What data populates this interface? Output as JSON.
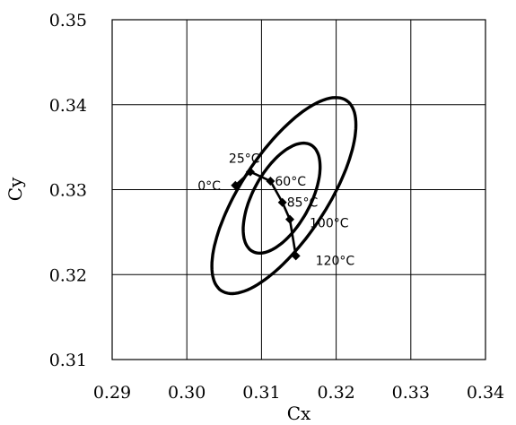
{
  "chart_data": {
    "type": "scatter",
    "xlabel": "Cx",
    "ylabel": "Cy",
    "xlim": [
      0.29,
      0.34
    ],
    "ylim": [
      0.31,
      0.35
    ],
    "x_ticks": [
      "0.29",
      "0.30",
      "0.31",
      "0.32",
      "0.33",
      "0.34"
    ],
    "y_ticks": [
      "0.31",
      "0.32",
      "0.33",
      "0.34",
      "0.35"
    ],
    "grid": true,
    "series": [
      {
        "points": [
          {
            "label": "0°C",
            "x": 0.3065,
            "y": 0.3305
          },
          {
            "label": "25°C",
            "x": 0.3085,
            "y": 0.3321
          },
          {
            "label": "60°C",
            "x": 0.3112,
            "y": 0.331
          },
          {
            "label": "85°C",
            "x": 0.3128,
            "y": 0.3285
          },
          {
            "label": "100°C",
            "x": 0.3138,
            "y": 0.3265
          },
          {
            "label": "120°C",
            "x": 0.3146,
            "y": 0.3222
          }
        ]
      }
    ],
    "ellipses": [
      {
        "cx": 0.3127,
        "cy": 0.329,
        "rx": 0.0074,
        "ry": 0.0037,
        "angle_deg": 56
      },
      {
        "cx": 0.313,
        "cy": 0.3293,
        "rx": 0.014,
        "ry": 0.0055,
        "angle_deg": 52
      }
    ]
  }
}
